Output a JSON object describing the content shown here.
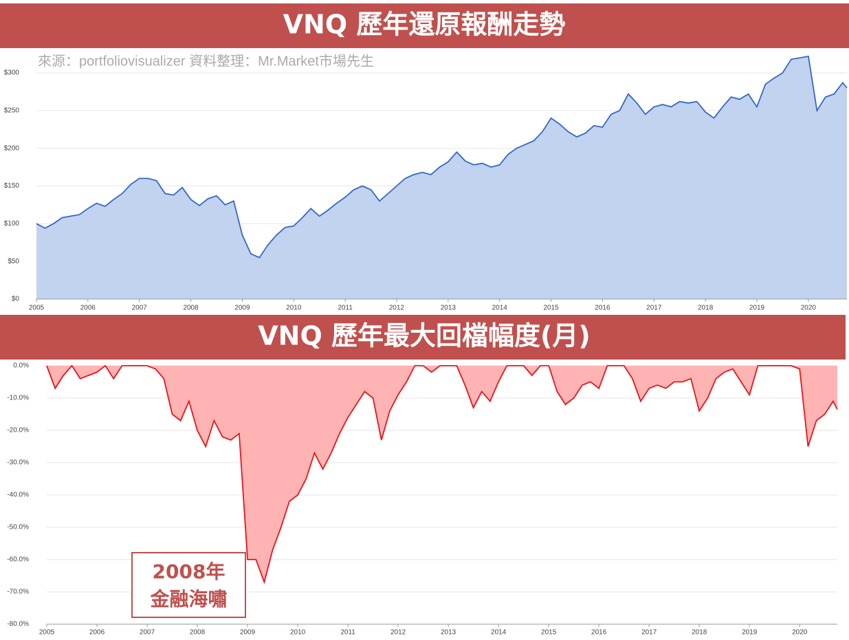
{
  "chart_data": [
    {
      "type": "area",
      "title": "VNQ 歷年還原報酬走勢",
      "subtitle": "來源：portfoliovisualizer 資料整理：Mr.Market市場先生",
      "color": "#3366cc",
      "fill": "#c2d3f0",
      "grid": true,
      "xlim": [
        2005,
        2020.75
      ],
      "xticks": [
        2005,
        2006,
        2007,
        2008,
        2009,
        2010,
        2011,
        2012,
        2013,
        2014,
        2015,
        2016,
        2017,
        2018,
        2019,
        2020
      ],
      "ylim": [
        0,
        300
      ],
      "yticks": [
        {
          "value": 0,
          "label": "$0"
        },
        {
          "value": 50,
          "label": "$50"
        },
        {
          "value": 100,
          "label": "$100"
        },
        {
          "value": 150,
          "label": "$150"
        },
        {
          "value": 200,
          "label": "$200"
        },
        {
          "value": 250,
          "label": "$250"
        },
        {
          "value": 300,
          "label": "$300"
        }
      ],
      "x": [
        2005,
        2005.167,
        2005.333,
        2005.5,
        2005.667,
        2005.833,
        2006,
        2006.167,
        2006.333,
        2006.5,
        2006.667,
        2006.833,
        2007,
        2007.167,
        2007.333,
        2007.5,
        2007.667,
        2007.833,
        2008,
        2008.167,
        2008.333,
        2008.5,
        2008.667,
        2008.833,
        2009,
        2009.167,
        2009.333,
        2009.5,
        2009.667,
        2009.833,
        2010,
        2010.167,
        2010.333,
        2010.5,
        2010.667,
        2010.833,
        2011,
        2011.167,
        2011.333,
        2011.5,
        2011.667,
        2011.833,
        2012,
        2012.167,
        2012.333,
        2012.5,
        2012.667,
        2012.833,
        2013,
        2013.167,
        2013.333,
        2013.5,
        2013.667,
        2013.833,
        2014,
        2014.167,
        2014.333,
        2014.5,
        2014.667,
        2014.833,
        2015,
        2015.167,
        2015.333,
        2015.5,
        2015.667,
        2015.833,
        2016,
        2016.167,
        2016.333,
        2016.5,
        2016.667,
        2016.833,
        2017,
        2017.167,
        2017.333,
        2017.5,
        2017.667,
        2017.833,
        2018,
        2018.167,
        2018.333,
        2018.5,
        2018.667,
        2018.833,
        2019,
        2019.167,
        2019.333,
        2019.5,
        2019.667,
        2019.833,
        2020,
        2020.167,
        2020.333,
        2020.5,
        2020.667,
        2020.75
      ],
      "values": [
        100,
        94,
        100,
        108,
        110,
        112,
        120,
        127,
        123,
        132,
        140,
        152,
        160,
        160,
        157,
        140,
        138,
        148,
        132,
        124,
        133,
        137,
        125,
        130,
        85,
        60,
        55,
        72,
        85,
        95,
        97,
        108,
        120,
        110,
        118,
        127,
        135,
        145,
        150,
        145,
        130,
        140,
        150,
        160,
        165,
        168,
        165,
        175,
        182,
        195,
        183,
        178,
        180,
        175,
        178,
        192,
        200,
        205,
        210,
        222,
        240,
        232,
        222,
        215,
        220,
        230,
        228,
        245,
        250,
        272,
        260,
        245,
        255,
        258,
        255,
        262,
        260,
        262,
        248,
        240,
        255,
        268,
        265,
        272,
        255,
        285,
        293,
        300,
        318,
        320,
        322,
        250,
        268,
        272,
        287,
        280
      ]
    },
    {
      "type": "area",
      "title": "VNQ 歷年最大回檔幅度(月)",
      "annotation": [
        "2008年",
        "金融海嘯"
      ],
      "color": "#e8141b",
      "fill": "#ffb3b3",
      "grid": true,
      "xlim": [
        2005,
        2020.75
      ],
      "xticks": [
        2005,
        2006,
        2007,
        2008,
        2009,
        2010,
        2011,
        2012,
        2013,
        2014,
        2015,
        2016,
        2017,
        2018,
        2019,
        2020
      ],
      "ylim": [
        -80,
        0
      ],
      "yticks": [
        {
          "value": 0,
          "label": "0.0%"
        },
        {
          "value": -10,
          "label": "-10.0%"
        },
        {
          "value": -20,
          "label": "-20.0%"
        },
        {
          "value": -30,
          "label": "-30.0%"
        },
        {
          "value": -40,
          "label": "-40.0%"
        },
        {
          "value": -50,
          "label": "-50.0%"
        },
        {
          "value": -60,
          "label": "-60.0%"
        },
        {
          "value": -70,
          "label": "-70.0%"
        },
        {
          "value": -80,
          "label": "-80.0%"
        }
      ],
      "x": [
        2005,
        2005.167,
        2005.333,
        2005.5,
        2005.667,
        2005.833,
        2006,
        2006.167,
        2006.333,
        2006.5,
        2006.667,
        2006.833,
        2007,
        2007.167,
        2007.333,
        2007.5,
        2007.667,
        2007.833,
        2008,
        2008.167,
        2008.333,
        2008.5,
        2008.667,
        2008.833,
        2009,
        2009.167,
        2009.333,
        2009.5,
        2009.667,
        2009.833,
        2010,
        2010.167,
        2010.333,
        2010.5,
        2010.667,
        2010.833,
        2011,
        2011.167,
        2011.333,
        2011.5,
        2011.667,
        2011.833,
        2012,
        2012.167,
        2012.333,
        2012.5,
        2012.667,
        2012.833,
        2013,
        2013.167,
        2013.333,
        2013.5,
        2013.667,
        2013.833,
        2014,
        2014.167,
        2014.333,
        2014.5,
        2014.667,
        2014.833,
        2015,
        2015.167,
        2015.333,
        2015.5,
        2015.667,
        2015.833,
        2016,
        2016.167,
        2016.333,
        2016.5,
        2016.667,
        2016.833,
        2017,
        2017.167,
        2017.333,
        2017.5,
        2017.667,
        2017.833,
        2018,
        2018.167,
        2018.333,
        2018.5,
        2018.667,
        2018.833,
        2019,
        2019.167,
        2019.333,
        2019.5,
        2019.667,
        2019.833,
        2020,
        2020.167,
        2020.333,
        2020.5,
        2020.667,
        2020.75
      ],
      "values": [
        0,
        -7,
        -3,
        0,
        -4,
        -3,
        -2,
        0,
        -4,
        0,
        0,
        0,
        0,
        -1,
        -4,
        -15,
        -17,
        -11,
        -20,
        -25,
        -17,
        -22,
        -23,
        -21,
        -60,
        -60,
        -67,
        -57,
        -50,
        -42,
        -40,
        -35,
        -27,
        -32,
        -27,
        -21,
        -16,
        -12,
        -8,
        -10,
        -23,
        -14,
        -9,
        -5,
        0,
        0,
        -2,
        0,
        0,
        0,
        -6,
        -13,
        -8,
        -11,
        -5,
        0,
        0,
        0,
        -3,
        0,
        0,
        -8,
        -12,
        -10,
        -6,
        -5,
        -7,
        0,
        0,
        0,
        -4,
        -11,
        -7,
        -6,
        -7,
        -5,
        -5,
        -4,
        -14,
        -10,
        -4,
        -2,
        -1,
        -5,
        -9,
        0,
        0,
        0,
        0,
        0,
        -1,
        -25,
        -17,
        -15,
        -11,
        -13.5
      ]
    }
  ]
}
